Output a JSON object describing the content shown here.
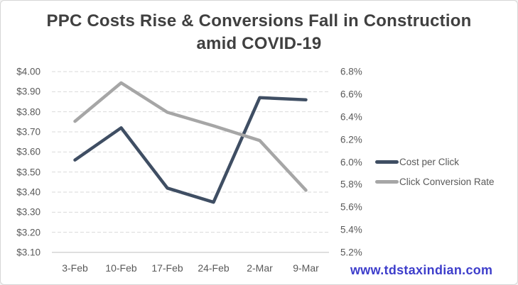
{
  "title": {
    "line1": "PPC Costs Rise & Conversions Fall in Construction",
    "line2": "amid COVID-19"
  },
  "watermark": {
    "text": "www.tdstaxindian.com",
    "color": "#3d3dcb"
  },
  "chart_data": {
    "type": "line",
    "categories": [
      "3-Feb",
      "10-Feb",
      "17-Feb",
      "24-Feb",
      "2-Mar",
      "9-Mar"
    ],
    "series": [
      {
        "name": "Cost per Click",
        "axis": "left",
        "color": "#3f4e63",
        "values": [
          3.56,
          3.72,
          3.42,
          3.35,
          3.87,
          3.86
        ]
      },
      {
        "name": "Click Conversion Rate",
        "axis": "right",
        "color": "#a6a6a6",
        "values": [
          6.36,
          6.7,
          6.44,
          6.32,
          6.19,
          5.75
        ]
      }
    ],
    "left_axis": {
      "ticks": [
        "$4.00",
        "$3.90",
        "$3.80",
        "$3.70",
        "$3.60",
        "$3.50",
        "$3.40",
        "$3.30",
        "$3.20",
        "$3.10"
      ],
      "min": 3.1,
      "max": 4.0
    },
    "right_axis": {
      "ticks": [
        "6.8%",
        "6.6%",
        "6.4%",
        "6.2%",
        "6.0%",
        "5.8%",
        "5.6%",
        "5.4%",
        "5.2%"
      ],
      "min": 5.2,
      "max": 6.8
    },
    "grid": "dashed horizontal",
    "grid_color": "#d9d9d9",
    "axis_line_color": "#bfbfbf",
    "legend_position": "right"
  }
}
